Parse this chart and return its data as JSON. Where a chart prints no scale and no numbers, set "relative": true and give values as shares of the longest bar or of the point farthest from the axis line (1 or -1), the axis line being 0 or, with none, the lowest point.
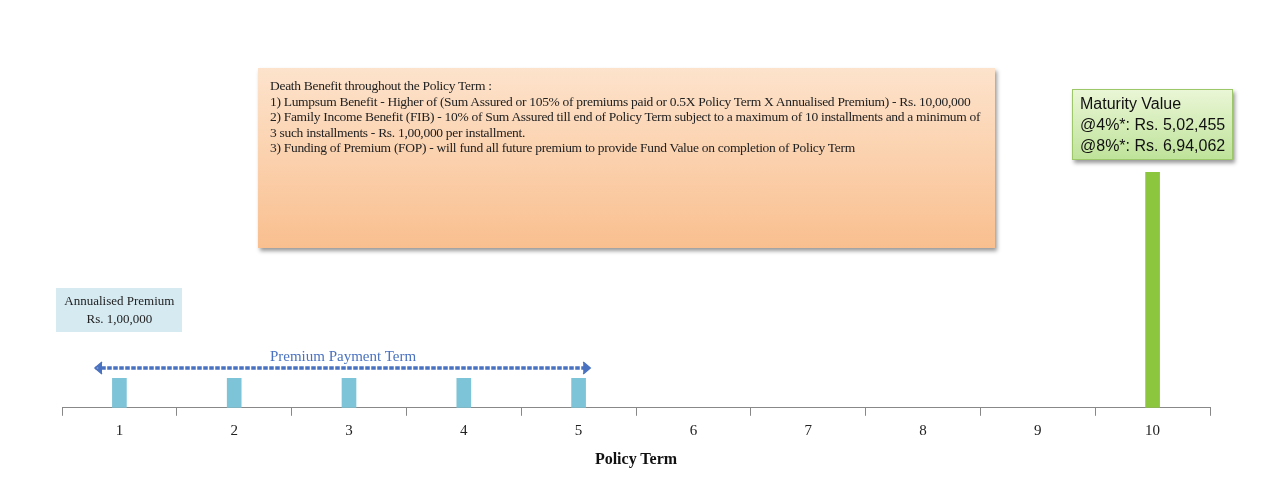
{
  "chart_data": {
    "type": "bar",
    "xlabel": "Policy Term",
    "relative": true,
    "categories": [
      "1",
      "2",
      "3",
      "4",
      "5",
      "6",
      "7",
      "8",
      "9",
      "10"
    ],
    "values": [
      0.125,
      0.125,
      0.125,
      0.125,
      0.125,
      null,
      null,
      null,
      null,
      1
    ],
    "colors": [
      "#7ec4d8",
      "#7ec4d8",
      "#7ec4d8",
      "#7ec4d8",
      "#7ec4d8",
      "#7ec4d8",
      "#7ec4d8",
      "#7ec4d8",
      "#7ec4d8",
      "#8cc63f"
    ],
    "annotations": [
      "Death Benefit throughout the Policy Term :\n1) Lumpsum Benefit - Higher of (Sum Assured or 105% of premiums paid or 0.5X Policy Term X Annualised Premium) - Rs. 10,00,000\n2) Family Income Benefit (FIB) - 10% of Sum Assured till end of Policy Term subject to a maximum of 10 installments and a minimum of 3 such installments - Rs. 1,00,000 per installment.\n3) Funding of Premium (FOP) - will fund all future premium to provide Fund Value on completion of Policy Term",
      "Premium Payment Term",
      "Annualised Premium\nRs. 1,00,000",
      "Maturity Value\n@4%*: Rs. 5,02,455\n@8%*: Rs. 6,94,062"
    ]
  }
}
